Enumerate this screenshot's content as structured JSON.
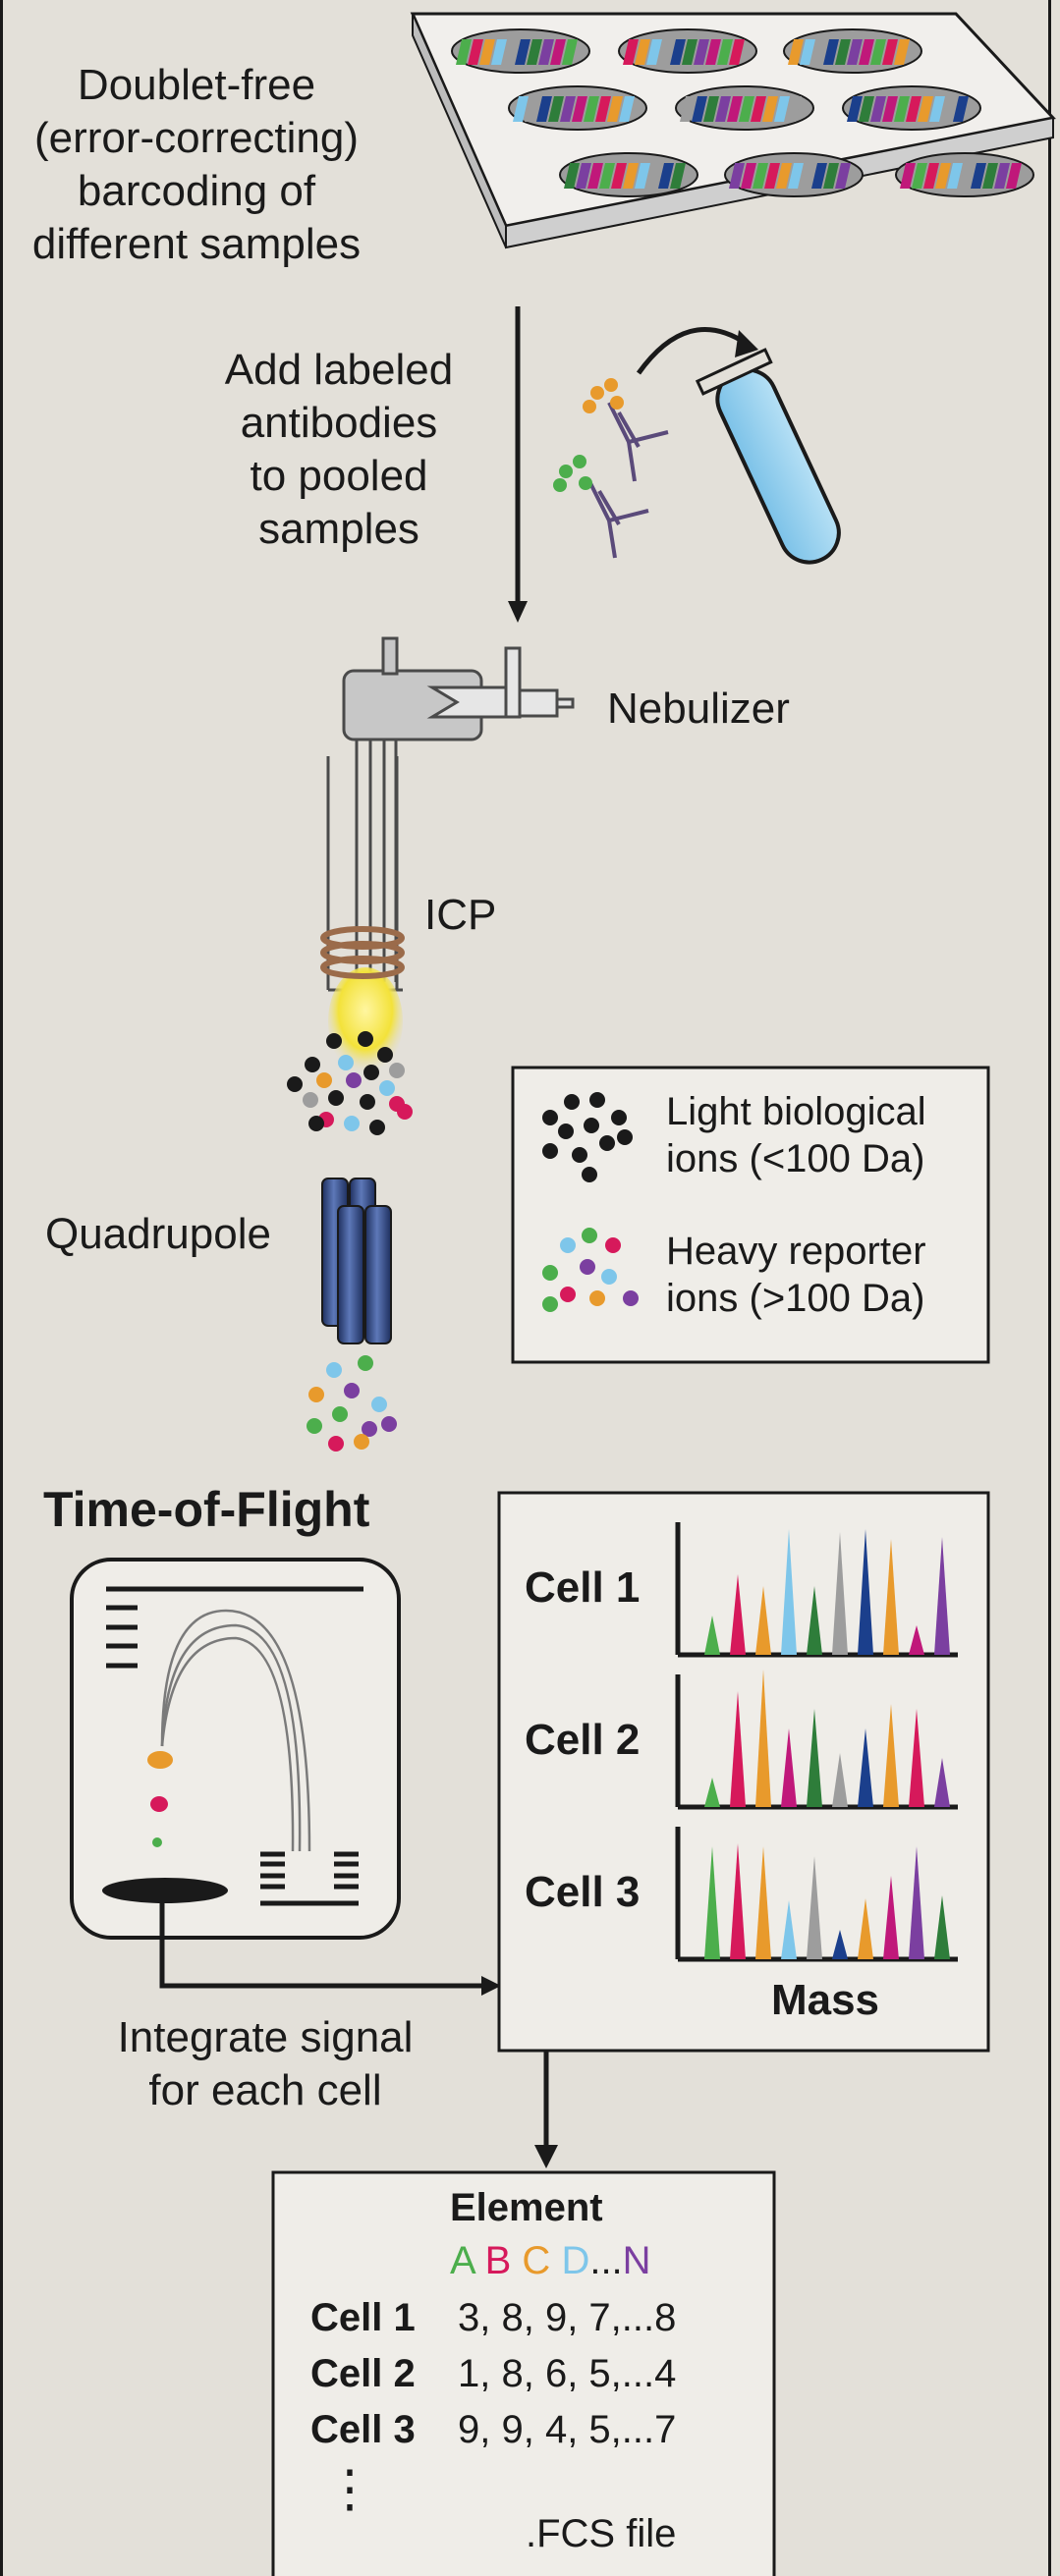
{
  "labels": {
    "barcoding": "Doublet-free\n(error-correcting)\nbarcoding of\ndifferent samples",
    "add_antibodies": "Add labeled\nantibodies\nto pooled\nsamples",
    "nebulizer": "Nebulizer",
    "icp": "ICP",
    "quadrupole": "Quadrupole",
    "tof_title": "Time-of-Flight",
    "integrate": "Integrate signal\nfor each cell",
    "mass": "Mass"
  },
  "legend": {
    "light": "Light biological\nions (<100 Da)",
    "heavy": "Heavy reporter\nions (>100 Da)"
  },
  "spectra": {
    "cells": [
      "Cell 1",
      "Cell 2",
      "Cell 3"
    ],
    "colors": [
      "#4cae4c",
      "#d6195b",
      "#e89a2c",
      "#7ec6ea",
      "#9d9d9d",
      "#1b3f8c",
      "#2e7d3a",
      "#7b3fa0",
      "#c0187a"
    ]
  },
  "fcs": {
    "header": "Element",
    "letters": [
      {
        "t": "A",
        "color": "#4cae4c"
      },
      {
        "t": "B",
        "color": "#d6195b"
      },
      {
        "t": "C",
        "color": "#e89a2c"
      },
      {
        "t": "D",
        "color": "#7ec6ea"
      },
      {
        "t": "...",
        "color": "#1a1a1a"
      },
      {
        "t": "N",
        "color": "#7b3fa0"
      }
    ],
    "rows": [
      {
        "cell": "Cell 1",
        "values": "3, 8, 9, 7,...8"
      },
      {
        "cell": "Cell 2",
        "values": "1, 8, 6, 5,...4"
      },
      {
        "cell": "Cell 3",
        "values": "9, 9, 4, 5,...7"
      }
    ],
    "ellipsis": "⋮",
    "file": ".FCS file"
  }
}
